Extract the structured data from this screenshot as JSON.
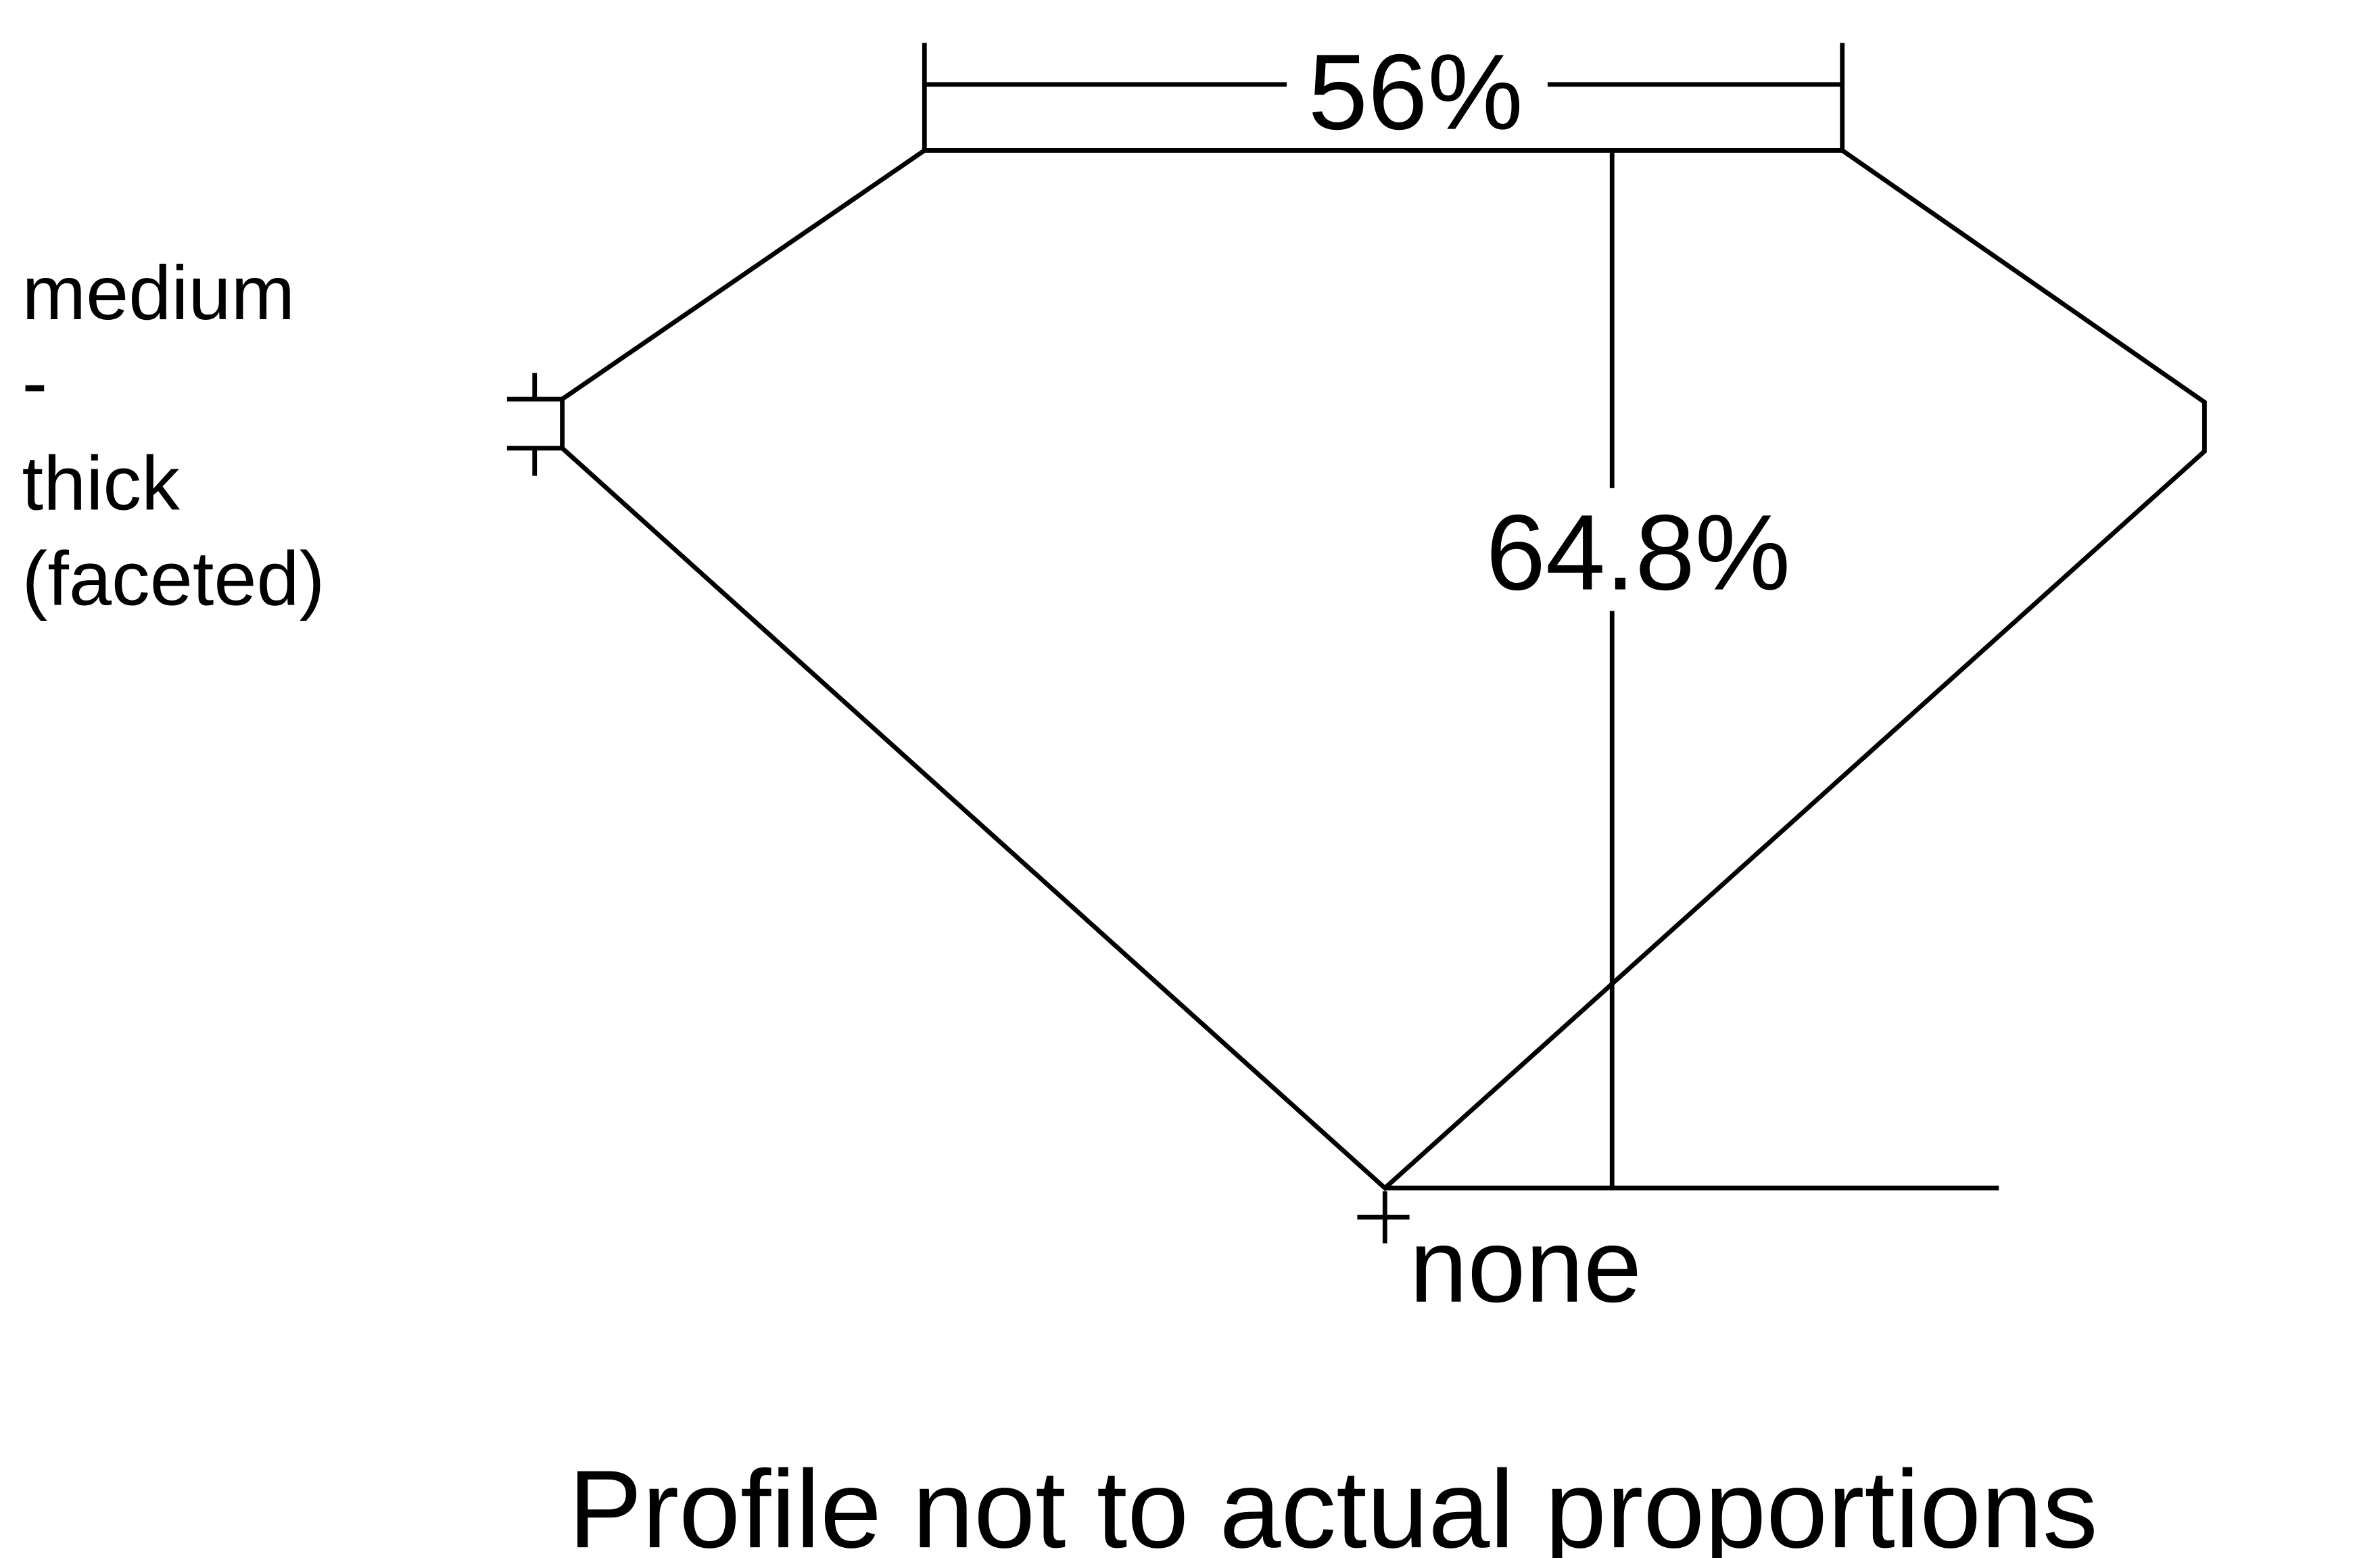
{
  "diagram": {
    "table_label": "56%",
    "depth_label": "64.8%",
    "girdle_label": [
      "medium",
      "-",
      "thick",
      "(faceted)"
    ],
    "culet_label": "none",
    "footnote": "Profile not to actual proportions",
    "line_color": "#000000"
  }
}
